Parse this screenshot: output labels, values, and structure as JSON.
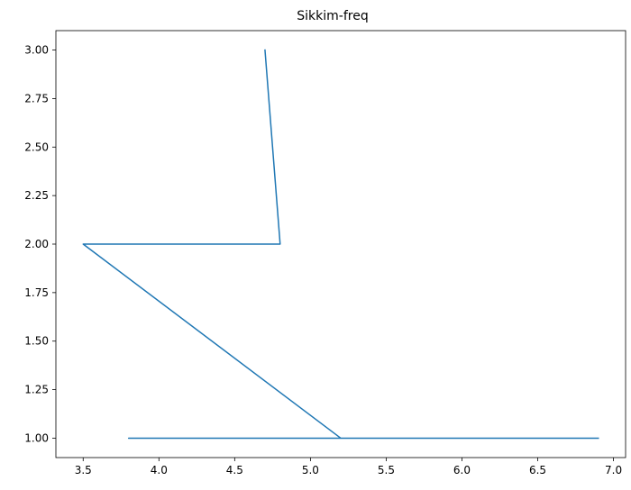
{
  "chart_data": {
    "type": "line",
    "title": "Sikkim-freq",
    "xlabel": "",
    "ylabel": "",
    "xlim": [
      3.32,
      7.08
    ],
    "ylim": [
      0.9,
      3.1
    ],
    "grid": false,
    "x_ticks": [
      "3.5",
      "4.0",
      "4.5",
      "5.0",
      "5.5",
      "6.0",
      "6.5",
      "7.0"
    ],
    "y_ticks": [
      "1.00",
      "1.25",
      "1.50",
      "1.75",
      "2.00",
      "2.25",
      "2.50",
      "2.75",
      "3.00"
    ],
    "series": [
      {
        "color": "#1f77b4",
        "x": [
          4.7,
          4.8,
          3.5,
          5.2,
          6.9,
          3.8,
          6.9
        ],
        "y": [
          3.0,
          2.0,
          2.0,
          1.0,
          1.0,
          1.0,
          1.0
        ]
      }
    ]
  }
}
